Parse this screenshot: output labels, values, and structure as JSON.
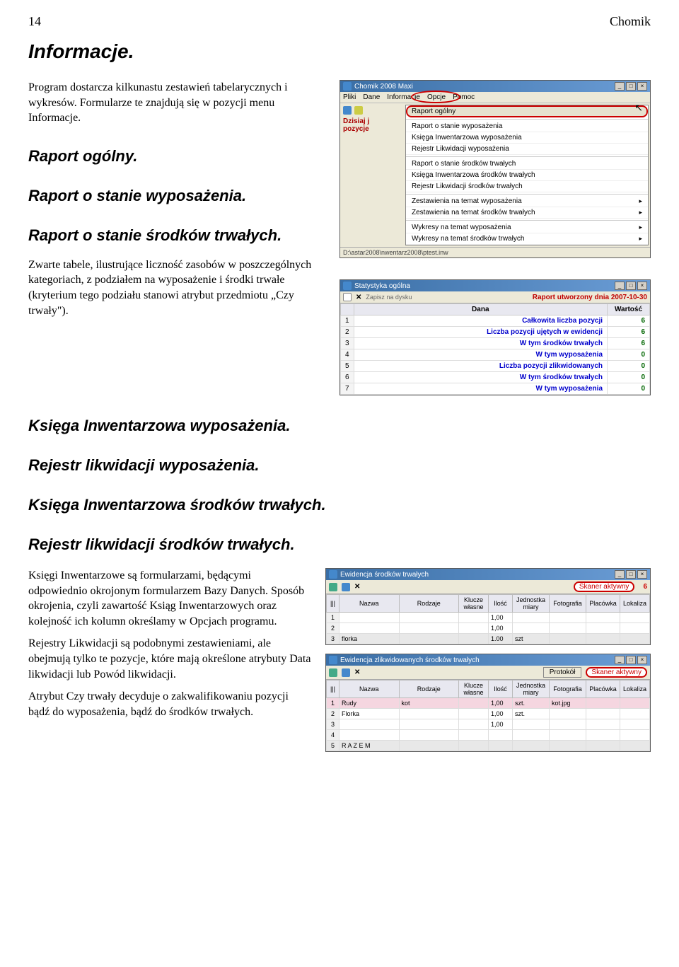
{
  "page": {
    "number": "14",
    "header_right": "Chomik"
  },
  "h1": "Informacje.",
  "intro": "Program dostarcza kilkunastu zestawień tabelarycznych i wykresów. Formularze te znajdują się w pozycji menu Informacje.",
  "h2_1": "Raport ogólny.",
  "h2_2": "Raport o stanie wyposażenia.",
  "h2_3": "Raport o stanie środków trwałych.",
  "para_tables": "Zwarte tabele, ilustrujące liczność zasobów w poszczególnych kategoriach, z podziałem na wyposażenie i środki trwałe (kryterium tego podziału stanowi atrybut przedmiotu „Czy trwały\").",
  "h2_4": "Księga Inwentarzowa wyposażenia.",
  "h2_5": "Rejestr likwidacji wyposażenia.",
  "h2_6": "Księga Inwentarzowa środków trwałych.",
  "h2_7": "Rejestr likwidacji środków trwałych.",
  "para_ksiegi": "Księgi Inwentarzowe są formularzami, będącymi odpowiednio okrojonym formularzem Bazy Danych. Sposób okrojenia, czyli zawartość Ksiąg Inwentarzowych oraz kolejność ich kolumn określamy w Opcjach programu.",
  "para_rejestry": "Rejestry Likwidacji są podobnymi zestawieniami, ale obejmują tylko te pozycje, które mają określone atrybuty Data likwidacji lub Powód likwidacji.",
  "para_atrybut": "Atrybut Czy trwały decyduje o zakwalifikowaniu pozycji bądź do wyposażenia, bądź do środków trwałych.",
  "shot1": {
    "title": "Chomik 2008  Maxi",
    "menubar": [
      "Pliki",
      "Dane",
      "Informacje",
      "Opcje",
      "Pomoc"
    ],
    "sidebar_label1": "Dzisiaj j",
    "sidebar_label2": "pozycje",
    "menu_items": [
      {
        "label": "Raport ogólny",
        "selected": true
      },
      {
        "sep": true
      },
      {
        "label": "Raport o stanie wyposażenia"
      },
      {
        "label": "Księga Inwentarzowa wyposażenia"
      },
      {
        "label": "Rejestr Likwidacji wyposażenia"
      },
      {
        "sep": true
      },
      {
        "label": "Raport o stanie środków trwałych"
      },
      {
        "label": "Księga Inwentarzowa środków trwałych"
      },
      {
        "label": "Rejestr Likwidacji środków trwałych"
      },
      {
        "sep": true
      },
      {
        "label": "Zestawienia na temat wyposażenia",
        "arrow": true
      },
      {
        "label": "Zestawienia na temat środków trwałych",
        "arrow": true
      },
      {
        "sep": true
      },
      {
        "label": "Wykresy na temat wyposażenia",
        "arrow": true
      },
      {
        "label": "Wykresy na temat środków trwałych",
        "arrow": true
      }
    ],
    "pathbar": "D:\\astar2008\\nwentarz2008\\ptest.inw"
  },
  "shot2": {
    "title": "Statystyka ogólna",
    "zapis_label": "Zapisz na dysku",
    "header_right": "Raport utworzony dnia 2007-10-30",
    "col_dana": "Dana",
    "col_wartosc": "Wartość",
    "rows": [
      {
        "n": "1",
        "desc": "Całkowita liczba pozycji",
        "val": "6"
      },
      {
        "n": "2",
        "desc": "Liczba pozycji ujętych w ewidencji",
        "val": "6"
      },
      {
        "n": "3",
        "desc": "W tym środków trwałych",
        "val": "6"
      },
      {
        "n": "4",
        "desc": "W tym wyposażenia",
        "val": "0"
      },
      {
        "n": "5",
        "desc": "Liczba pozycji zlikwidowanych",
        "val": "0"
      },
      {
        "n": "6",
        "desc": "W tym środków trwałych",
        "val": "0"
      },
      {
        "n": "7",
        "desc": "W tym wyposażenia",
        "val": "0"
      }
    ]
  },
  "shot3": {
    "title": "Ewidencja środków trwałych",
    "skaner": "Skaner aktywny",
    "count": "6",
    "cols": [
      "Nazwa",
      "Rodzaje",
      "Klucze własne",
      "Ilość",
      "Jednostka miary",
      "Fotografia",
      "Placówka",
      "Lokaliza"
    ],
    "rows": [
      {
        "n": "1",
        "cells": [
          "",
          "",
          "",
          "1,00",
          "",
          "",
          "",
          ""
        ]
      },
      {
        "n": "2",
        "cells": [
          "",
          "",
          "",
          "1,00",
          "",
          "",
          "",
          ""
        ]
      },
      {
        "n": "3",
        "cells": [
          "florka",
          "",
          "",
          "1.00",
          "szt",
          "",
          "",
          ""
        ],
        "shaded": true
      }
    ]
  },
  "shot4": {
    "title": "Ewidencja zlikwidowanych środków trwałych",
    "btn_protokol": "Protokół",
    "skaner": "Skaner aktywny",
    "cols": [
      "Nazwa",
      "Rodzaje",
      "Klucze własne",
      "Ilość",
      "Jednostka miary",
      "Fotografia",
      "Placówka",
      "Lokaliza"
    ],
    "rows": [
      {
        "n": "1",
        "cells": [
          "Rudy",
          "kot",
          "",
          "1,00",
          "szt.",
          "kot.jpg",
          "",
          ""
        ],
        "pink": true
      },
      {
        "n": "2",
        "cells": [
          "Florka",
          "",
          "",
          "1,00",
          "szt.",
          "",
          "",
          ""
        ]
      },
      {
        "n": "3",
        "cells": [
          "",
          "",
          "",
          "1,00",
          "",
          "",
          "",
          ""
        ]
      },
      {
        "n": "4",
        "cells": [
          "",
          "",
          "",
          "",
          "",
          "",
          "",
          ""
        ]
      },
      {
        "n": "5",
        "cells": [
          "R A Z E M",
          "",
          "",
          "",
          "",
          "",
          "",
          ""
        ],
        "shaded": true
      }
    ]
  }
}
